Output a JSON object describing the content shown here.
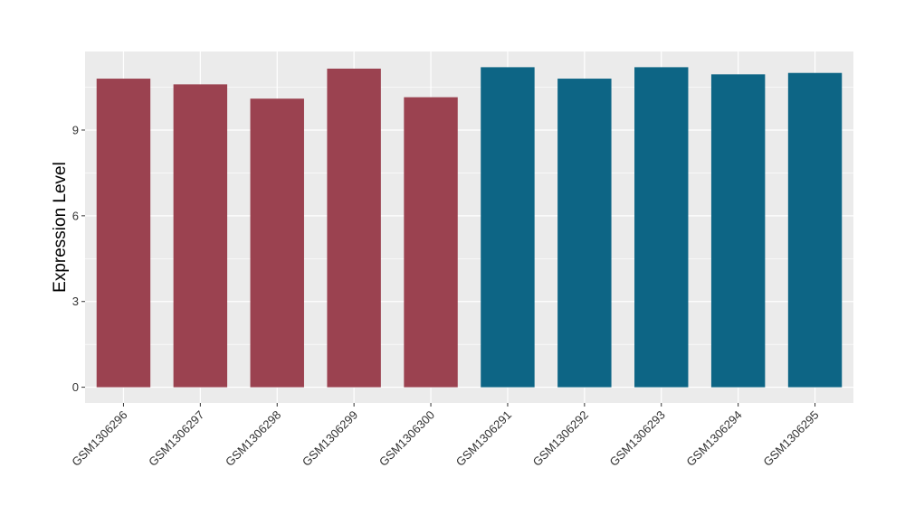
{
  "chart_data": {
    "type": "bar",
    "title": "",
    "xlabel": "",
    "ylabel": "Expression Level",
    "categories": [
      "GSM1306296",
      "GSM1306297",
      "GSM1306298",
      "GSM1306299",
      "GSM1306300",
      "GSM1306291",
      "GSM1306292",
      "GSM1306293",
      "GSM1306294",
      "GSM1306295"
    ],
    "values": [
      10.8,
      10.6,
      10.1,
      11.15,
      10.15,
      11.2,
      10.8,
      11.2,
      10.95,
      11.0
    ],
    "groups": [
      1,
      1,
      1,
      1,
      1,
      2,
      2,
      2,
      2,
      2
    ],
    "group_colors": [
      "#9b4250",
      "#0d6585"
    ],
    "yticks": [
      "0",
      "3",
      "6",
      "9"
    ],
    "ylim": [
      -0.55,
      11.75
    ],
    "grid": true,
    "background": "#ebebeb",
    "gridline_color": "#ffffff"
  }
}
